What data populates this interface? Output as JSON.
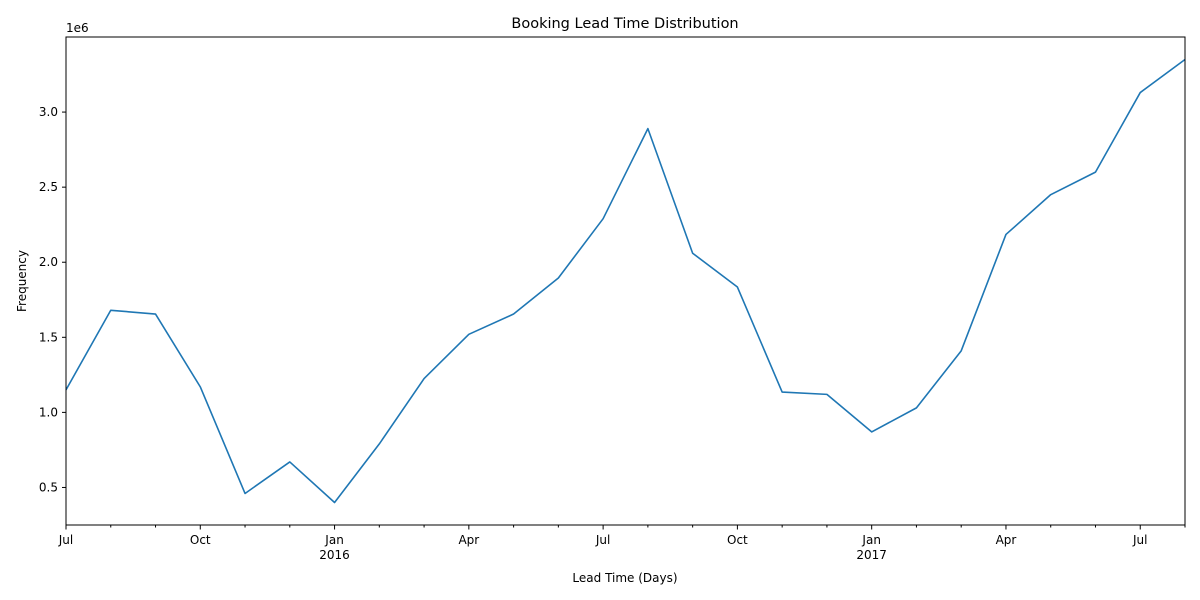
{
  "chart_data": {
    "type": "line",
    "title": "Booking Lead Time Distribution",
    "xlabel": "Lead Time (Days)",
    "ylabel": "Frequency",
    "y_offset_label": "1e6",
    "x_is_date": true,
    "xlim": [
      "2015-07",
      "2017-08"
    ],
    "ylim": [
      0.25,
      3.5
    ],
    "y_ticks": [
      0.5,
      1.0,
      1.5,
      2.0,
      2.5,
      3.0
    ],
    "y_tick_labels": [
      "0.5",
      "1.0",
      "1.5",
      "2.0",
      "2.5",
      "3.0"
    ],
    "x_major_ticks": [
      {
        "x": "2015-07",
        "label": "Jul",
        "sublabel": ""
      },
      {
        "x": "2015-10",
        "label": "Oct",
        "sublabel": ""
      },
      {
        "x": "2016-01",
        "label": "Jan",
        "sublabel": "2016"
      },
      {
        "x": "2016-04",
        "label": "Apr",
        "sublabel": ""
      },
      {
        "x": "2016-07",
        "label": "Jul",
        "sublabel": ""
      },
      {
        "x": "2016-10",
        "label": "Oct",
        "sublabel": ""
      },
      {
        "x": "2017-01",
        "label": "Jan",
        "sublabel": "2017"
      },
      {
        "x": "2017-04",
        "label": "Apr",
        "sublabel": ""
      },
      {
        "x": "2017-07",
        "label": "Jul",
        "sublabel": ""
      }
    ],
    "grid": false,
    "line_color": "#1f77b4",
    "series": [
      {
        "x": [
          "2015-07",
          "2015-08",
          "2015-09",
          "2015-10",
          "2015-11",
          "2015-12",
          "2016-01",
          "2016-02",
          "2016-03",
          "2016-04",
          "2016-05",
          "2016-06",
          "2016-07",
          "2016-08",
          "2016-09",
          "2016-10",
          "2016-11",
          "2016-12",
          "2017-01",
          "2017-02",
          "2017-03",
          "2017-04",
          "2017-05",
          "2017-06",
          "2017-07",
          "2017-08"
        ],
        "values": [
          1.15,
          1.68,
          1.655,
          1.17,
          0.46,
          0.67,
          0.4,
          0.79,
          1.225,
          1.52,
          1.655,
          1.895,
          2.29,
          2.89,
          2.06,
          1.835,
          1.135,
          1.12,
          0.87,
          1.03,
          1.41,
          2.185,
          2.45,
          2.6,
          3.13,
          3.35
        ]
      }
    ]
  }
}
